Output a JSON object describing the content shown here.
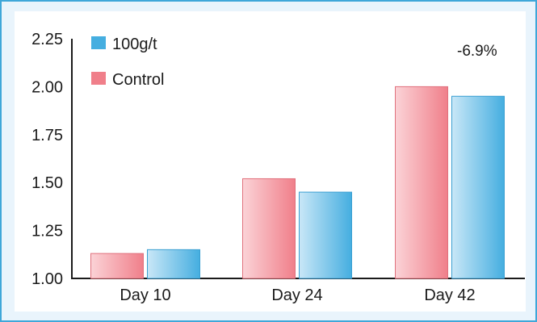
{
  "chart_data": {
    "type": "bar",
    "categories": [
      "Day 10",
      "Day 24",
      "Day 42"
    ],
    "series": [
      {
        "name": "Control",
        "values": [
          1.13,
          1.52,
          2.0
        ],
        "color": "#f07f8a"
      },
      {
        "name": "100g/t",
        "values": [
          1.15,
          1.45,
          1.95
        ],
        "color": "#45aee0"
      }
    ],
    "ylim": [
      1.0,
      2.25
    ],
    "yticks": [
      "1.00",
      "1.25",
      "1.50",
      "1.75",
      "2.00",
      "2.25"
    ],
    "ytick_values": [
      1.0,
      1.25,
      1.5,
      1.75,
      2.0,
      2.25
    ],
    "legend": {
      "placement": "top-left",
      "order": [
        "100g/t",
        "Control"
      ]
    },
    "annotations": [
      {
        "text": "-6.9%"
      }
    ],
    "grid": false
  }
}
